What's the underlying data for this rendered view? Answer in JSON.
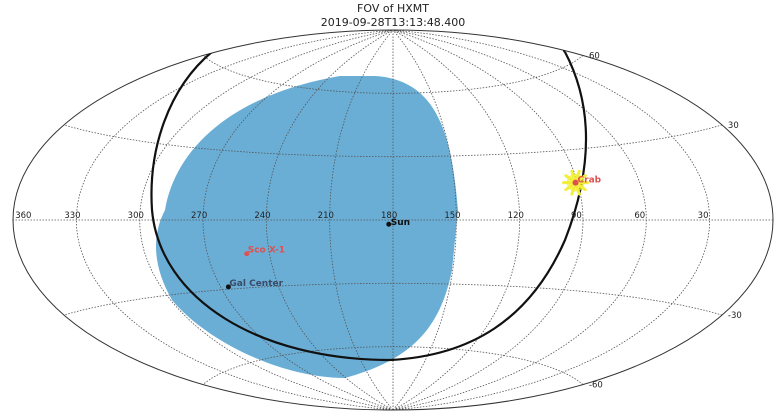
{
  "chart_data": {
    "type": "scatter",
    "projection": "aitoff",
    "title": "FOV of HXMT",
    "subtitle": "2019-09-28T13:13:48.400",
    "grid": true,
    "lon_ticks": [
      "360",
      "330",
      "300",
      "270",
      "240",
      "210",
      "180",
      "150",
      "120",
      "90",
      "60",
      "30"
    ],
    "lat_ticks": [
      "60",
      "30",
      "-30",
      "-60"
    ],
    "colors": {
      "fov_fill": "#6aaed6",
      "horizon_line": "#111111",
      "sun": "#111111",
      "crab": "#e05050",
      "crab_halo": "#f2ef3a",
      "sco_x1": "#e05050",
      "gal_center": "#3b4a66"
    },
    "sources": [
      {
        "name": "Sun",
        "lon": 182,
        "lat": -2
      },
      {
        "name": "Crab",
        "lon": 91,
        "lat": 16
      },
      {
        "name": "Sco X-1",
        "lon": 251,
        "lat": -15
      },
      {
        "name": "Gal Center",
        "lon": 266,
        "lat": -29
      }
    ]
  }
}
